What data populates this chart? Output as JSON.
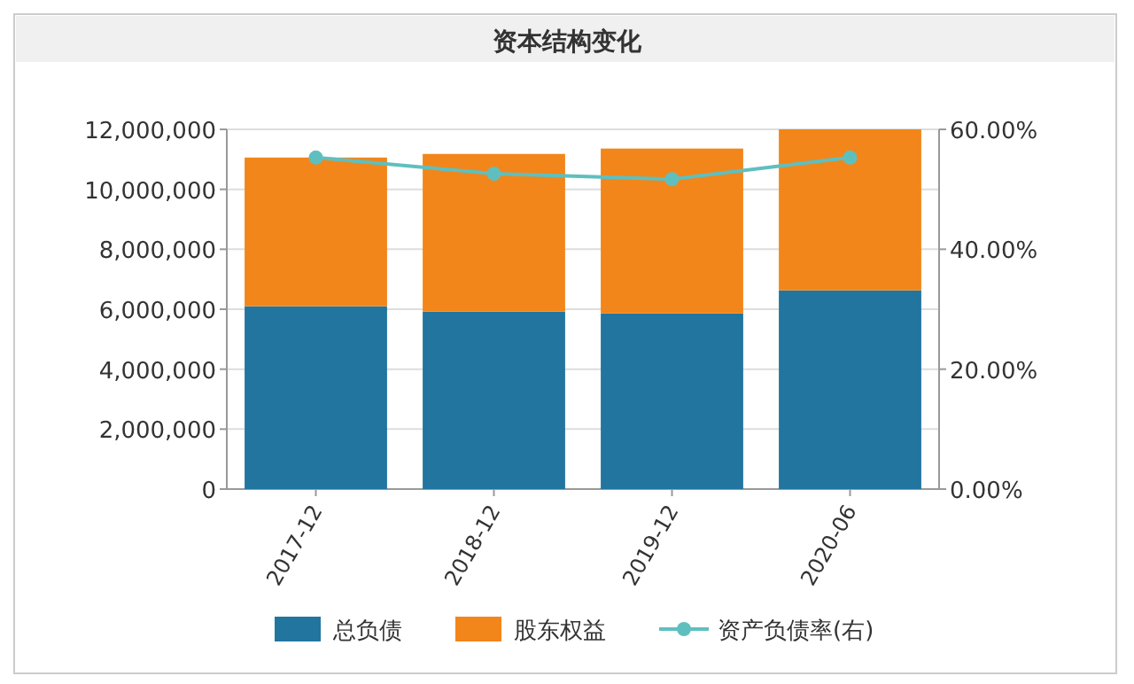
{
  "chart_data": {
    "type": "bar",
    "title": "资本结构变化",
    "stacked": true,
    "categories": [
      "2017-12",
      "2018-12",
      "2019-12",
      "2020-06"
    ],
    "series": [
      {
        "name": "总负债",
        "color": "#21759f",
        "values": [
          6100000,
          5920000,
          5860000,
          6630000
        ]
      },
      {
        "name": "股东权益",
        "color": "#f2861a",
        "values": [
          4960000,
          5260000,
          5500000,
          5370000
        ]
      },
      {
        "name": "资产负债率(右)",
        "type": "line",
        "axis": "y2",
        "marker": "circle",
        "color": "#5fbfbf",
        "values": [
          55.3,
          52.6,
          51.7,
          55.3
        ]
      }
    ],
    "ylim": [
      0,
      12000000
    ],
    "yticks": [
      {
        "value": 0,
        "label": "0"
      },
      {
        "value": 2000000,
        "label": "2,000,000"
      },
      {
        "value": 4000000,
        "label": "4,000,000"
      },
      {
        "value": 6000000,
        "label": "6,000,000"
      },
      {
        "value": 8000000,
        "label": "8,000,000"
      },
      {
        "value": 10000000,
        "label": "10,000,000"
      },
      {
        "value": 12000000,
        "label": "12,000,000"
      }
    ],
    "y2lim": [
      0,
      60
    ],
    "y2ticks": [
      {
        "value": 0,
        "label": "0.00%"
      },
      {
        "value": 20,
        "label": "20.00%"
      },
      {
        "value": 40,
        "label": "40.00%"
      },
      {
        "value": 60,
        "label": "60.00%"
      }
    ],
    "grid": "y",
    "legend": "bottom"
  }
}
